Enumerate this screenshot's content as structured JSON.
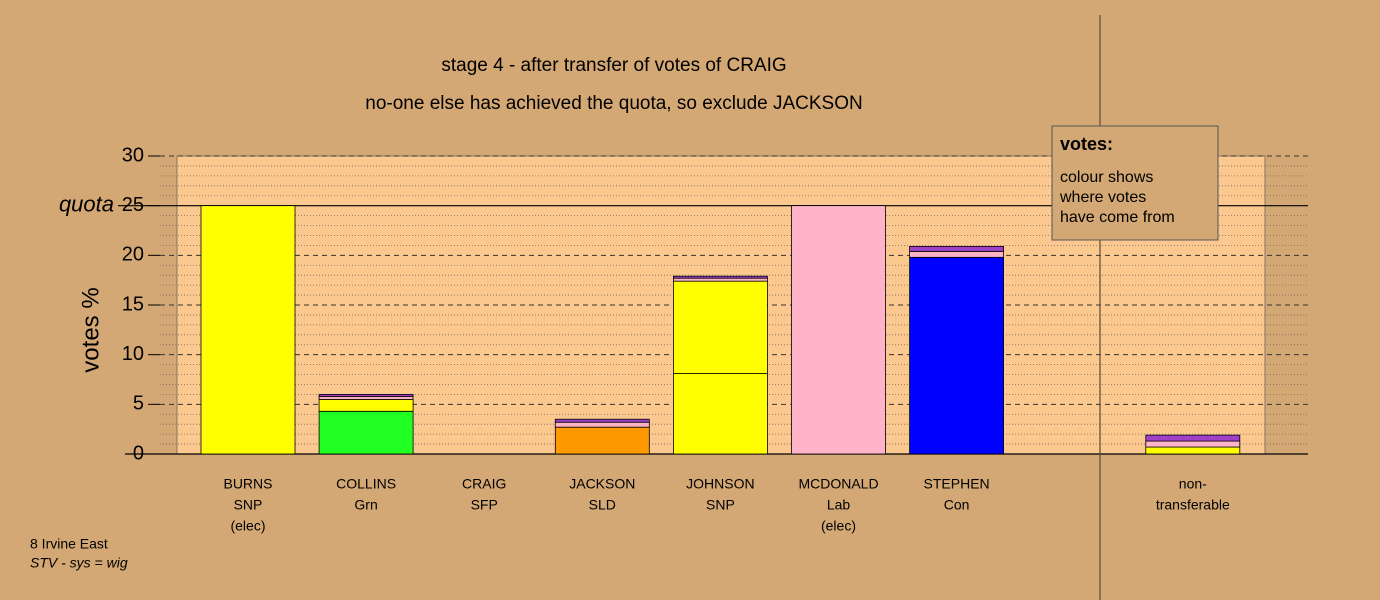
{
  "chart_data": {
    "type": "stacked-bar",
    "title": "stage 4 - after transfer of votes of CRAIG",
    "subtitle": "no-one else has achieved the quota, so exclude JACKSON",
    "y_label": "votes %",
    "quota_label": "quota",
    "quota": 25,
    "ylim": [
      0,
      30
    ],
    "yticks": [
      0,
      5,
      10,
      15,
      20,
      25,
      30
    ],
    "minor_grid_step": 1,
    "grid": true,
    "categories": [
      [
        "BURNS",
        "SNP",
        "(elec)"
      ],
      [
        "COLLINS",
        "Grn"
      ],
      [
        "CRAIG",
        "SFP"
      ],
      [
        "JACKSON",
        "SLD"
      ],
      [
        "JOHNSON",
        "SNP"
      ],
      [
        "MCDONALD",
        "Lab",
        "(elec)"
      ],
      [
        "STEPHEN",
        "Con"
      ],
      null,
      [
        "non-",
        "transferable"
      ]
    ],
    "stacks": [
      {
        "values": [
          25
        ],
        "colors": [
          "#ffff00"
        ]
      },
      {
        "values": [
          4.3,
          1.2,
          0.3,
          0.2
        ],
        "colors": [
          "#22ff22",
          "#ffff00",
          "#ffb3c8",
          "#a040c8"
        ]
      },
      {
        "values": [],
        "colors": []
      },
      {
        "values": [
          2.7,
          0.5,
          0.3
        ],
        "colors": [
          "#ff9900",
          "#ffb3c8",
          "#a040c8"
        ]
      },
      {
        "values": [
          8.1,
          9.3,
          0.3,
          0.2
        ],
        "colors": [
          "#ffff00",
          "#ffff00",
          "#ffb3c8",
          "#a040c8"
        ]
      },
      {
        "values": [
          25
        ],
        "colors": [
          "#ffb3c8"
        ]
      },
      {
        "values": [
          19.8,
          0.6,
          0.5
        ],
        "colors": [
          "#0000ff",
          "#ffb3c8",
          "#a040c8"
        ]
      },
      null,
      {
        "values": [
          0.7,
          0.6,
          0.6
        ],
        "colors": [
          "#ffff00",
          "#ffb3c8",
          "#a040c8"
        ]
      }
    ],
    "legend_box": {
      "title": "votes:",
      "lines": [
        "colour shows",
        "where votes",
        "have come from"
      ]
    },
    "footer": [
      "8 Irvine East",
      "STV - sys = wig"
    ]
  }
}
